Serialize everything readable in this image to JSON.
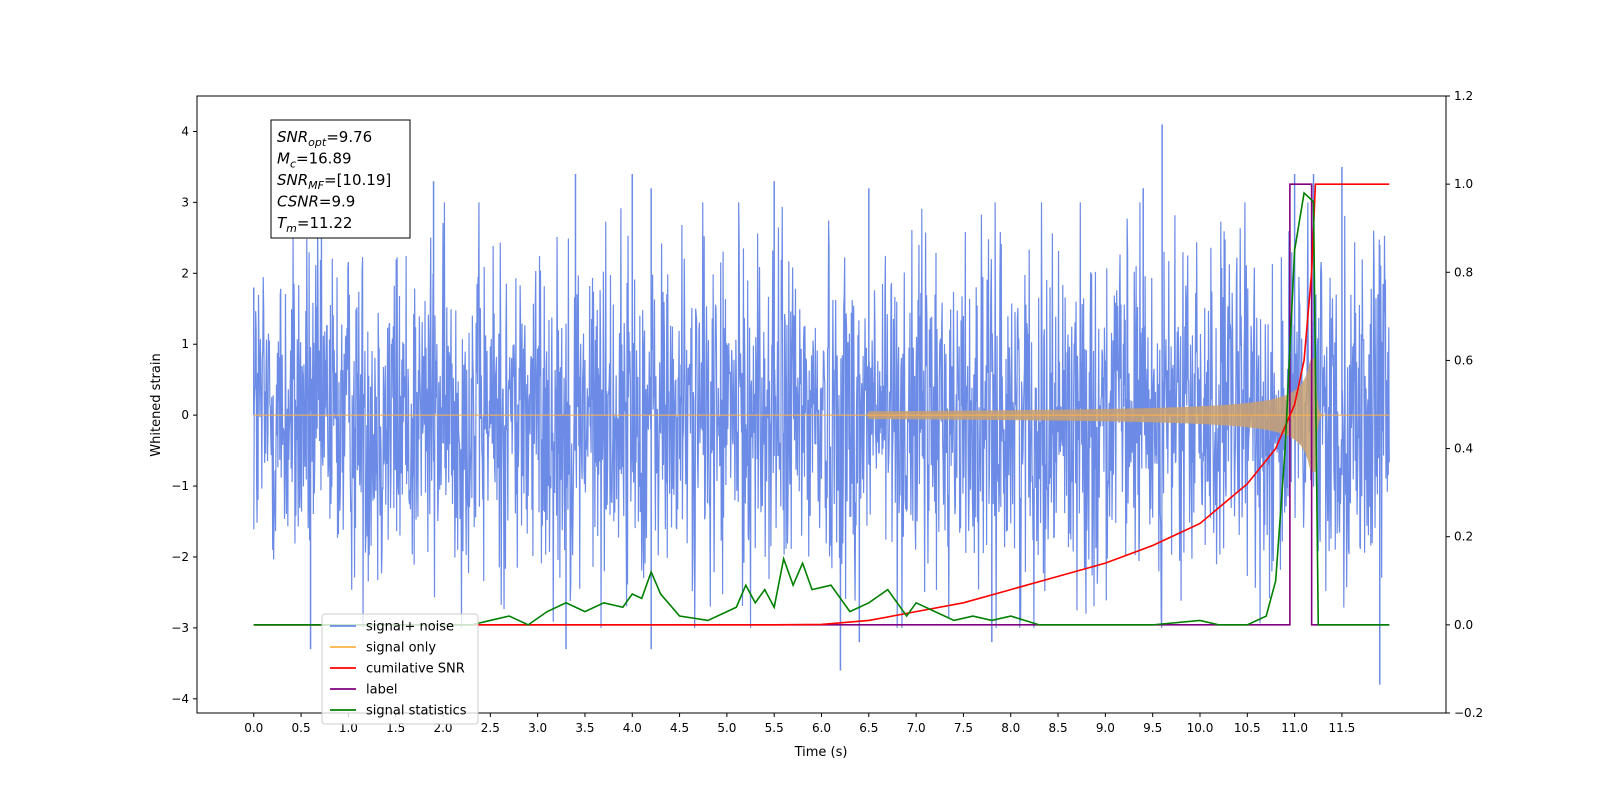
{
  "chart_data": {
    "type": "line",
    "xlabel": "Time (s)",
    "ylabel_left": "Whitened strain",
    "ylabel_right": "",
    "xlim": [
      -0.6,
      12.6
    ],
    "ylim_left": [
      -4.2,
      4.5
    ],
    "ylim_right": [
      -0.2,
      1.2
    ],
    "x_ticks": [
      0.0,
      0.5,
      1.0,
      1.5,
      2.0,
      2.5,
      3.0,
      3.5,
      4.0,
      4.5,
      5.0,
      5.5,
      6.0,
      6.5,
      7.0,
      7.5,
      8.0,
      8.5,
      9.0,
      9.5,
      10.0,
      10.5,
      11.0,
      11.5
    ],
    "x_tick_labels": [
      "0.0",
      "0.5",
      "1.0",
      "1.5",
      "2.0",
      "2.5",
      "3.0",
      "3.5",
      "4.0",
      "4.5",
      "5.0",
      "5.5",
      "6.0",
      "6.5",
      "7.0",
      "7.5",
      "8.0",
      "8.5",
      "9.0",
      "9.5",
      "10.0",
      "10.5",
      "11.0",
      "11.5"
    ],
    "y_left_ticks": [
      -4,
      -3,
      -2,
      -1,
      0,
      1,
      2,
      3,
      4
    ],
    "y_left_tick_labels": [
      "−4",
      "−3",
      "−2",
      "−1",
      "0",
      "1",
      "2",
      "3",
      "4"
    ],
    "y_right_ticks": [
      -0.2,
      0.0,
      0.2,
      0.4,
      0.6,
      0.8,
      1.0,
      1.2
    ],
    "y_right_tick_labels": [
      "−0.2",
      "0.0",
      "0.2",
      "0.4",
      "0.6",
      "0.8",
      "1.0",
      "1.2"
    ],
    "grid": false,
    "legend_position": "lower-left",
    "colors": {
      "signal_noise": "#6b8be6",
      "signal_only": "#ffb347",
      "cumulative_snr": "#ff0000",
      "label": "#800080",
      "signal_statistics": "#008000",
      "signal_fill": "#c8a070"
    },
    "legend": [
      {
        "key": "signal_noise",
        "label": "signal+ noise"
      },
      {
        "key": "signal_only",
        "label": "signal only"
      },
      {
        "key": "cumulative_snr",
        "label": "cumilative SNR"
      },
      {
        "key": "label",
        "label": "label"
      },
      {
        "key": "signal_statistics",
        "label": "signal statistics"
      }
    ],
    "annotation": [
      {
        "main": "SNR",
        "sub": "opt",
        "value": "=9.76"
      },
      {
        "main": "M",
        "sub": "c",
        "value": "=16.89"
      },
      {
        "main": "SNR",
        "sub": "MF",
        "value": "=[10.19]"
      },
      {
        "main": "CSNR",
        "sub": "",
        "value": "=9.9"
      },
      {
        "main": "T",
        "sub": "m",
        "value": "=11.22"
      }
    ],
    "series": [
      {
        "key": "signal_noise",
        "axis": "left",
        "description_kind": "noise",
        "x_range": [
          0.0,
          12.0
        ],
        "envelope": 1.9,
        "peaks": [
          [
            0.0,
            1.8
          ],
          [
            1.9,
            3.3
          ],
          [
            3.4,
            3.4
          ],
          [
            4.0,
            3.4
          ],
          [
            4.2,
            3.2
          ],
          [
            5.5,
            3.3
          ],
          [
            6.5,
            3.2
          ],
          [
            9.4,
            3.2
          ],
          [
            9.6,
            4.1
          ],
          [
            11.0,
            3.4
          ],
          [
            11.2,
            3.4
          ],
          [
            11.5,
            3.5
          ],
          [
            11.9,
            2.4
          ]
        ],
        "troughs": [
          [
            0.6,
            -3.3
          ],
          [
            3.3,
            -3.3
          ],
          [
            4.2,
            -3.3
          ],
          [
            6.2,
            -3.6
          ],
          [
            6.4,
            -3.2
          ],
          [
            7.8,
            -3.2
          ],
          [
            11.9,
            -3.8
          ]
        ]
      },
      {
        "key": "signal_only",
        "axis": "left",
        "x_range": [
          0.0,
          12.0
        ],
        "chirp_start": 6.5,
        "chirp_merger": 11.22,
        "peak_amplitude": 0.8
      },
      {
        "key": "cumulative_snr",
        "axis": "right",
        "x": [
          0.0,
          5.5,
          6.0,
          6.5,
          7.0,
          7.5,
          8.0,
          8.5,
          9.0,
          9.5,
          10.0,
          10.5,
          10.8,
          11.0,
          11.1,
          11.18,
          11.22,
          11.25,
          12.0
        ],
        "y": [
          0.0,
          0.0,
          0.001,
          0.01,
          0.03,
          0.05,
          0.08,
          0.11,
          0.14,
          0.18,
          0.23,
          0.32,
          0.4,
          0.5,
          0.6,
          0.8,
          1.0,
          1.0,
          1.0
        ]
      },
      {
        "key": "label",
        "axis": "right",
        "x": [
          0.0,
          10.95,
          10.95,
          11.18,
          11.18,
          12.0
        ],
        "y": [
          0.0,
          0.0,
          1.0,
          1.0,
          0.0,
          0.0
        ]
      },
      {
        "key": "signal_statistics",
        "axis": "right",
        "x": [
          0.0,
          2.3,
          2.5,
          2.7,
          2.9,
          3.1,
          3.3,
          3.5,
          3.7,
          3.9,
          4.0,
          4.1,
          4.2,
          4.3,
          4.5,
          4.8,
          5.1,
          5.2,
          5.3,
          5.4,
          5.5,
          5.6,
          5.7,
          5.8,
          5.9,
          6.1,
          6.3,
          6.5,
          6.7,
          6.9,
          7.0,
          7.2,
          7.4,
          7.6,
          7.8,
          8.0,
          8.3,
          8.6,
          9.5,
          10.0,
          10.2,
          10.5,
          10.7,
          10.8,
          10.9,
          11.0,
          11.1,
          11.2,
          11.25,
          12.0
        ],
        "y": [
          0.0,
          0.0,
          0.01,
          0.02,
          0.0,
          0.03,
          0.05,
          0.03,
          0.05,
          0.04,
          0.07,
          0.06,
          0.12,
          0.07,
          0.02,
          0.01,
          0.04,
          0.09,
          0.05,
          0.08,
          0.04,
          0.15,
          0.09,
          0.14,
          0.08,
          0.09,
          0.03,
          0.05,
          0.08,
          0.02,
          0.05,
          0.03,
          0.01,
          0.02,
          0.01,
          0.02,
          0.0,
          0.0,
          0.0,
          0.01,
          0.0,
          0.0,
          0.02,
          0.1,
          0.4,
          0.85,
          0.98,
          0.96,
          0.0,
          0.0
        ]
      }
    ]
  }
}
